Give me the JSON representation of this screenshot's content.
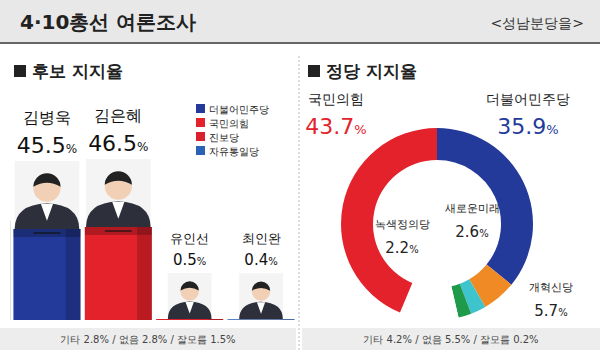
{
  "header": {
    "title": "4·10총선 여론조사",
    "subtitle": "<성남분당을>"
  },
  "chart_data": [
    {
      "type": "bar",
      "title": "후보 지지율",
      "categories": [
        "김병욱",
        "김은혜",
        "유인선",
        "최인완"
      ],
      "values": [
        45.5,
        46.5,
        0.5,
        0.4
      ],
      "value_labels": [
        "45.5%",
        "46.5%",
        "0.5%",
        "0.4%"
      ],
      "colors": [
        "#243a9a",
        "#e3222b",
        "#d9202c",
        "#2a63b6"
      ],
      "parties": [
        "더불어민주당",
        "국민의힘",
        "진보당",
        "자유통일당"
      ],
      "ylim": [
        0,
        50
      ],
      "tick_labels": false,
      "data_labels": true,
      "note": "기타 2.8% / 없음 2.8% / 잘모름 1.5%"
    },
    {
      "type": "donut",
      "title": "정당 지지율",
      "categories": [
        "더불어민주당",
        "개혁신당",
        "새로운미래",
        "녹색정의당",
        "기타",
        "없음",
        "잘모름",
        "국민의힘"
      ],
      "values": [
        35.9,
        5.7,
        2.6,
        2.2,
        4.2,
        5.5,
        0.2,
        43.7
      ],
      "value_labels": [
        "35.9%",
        "5.7%",
        "2.6%",
        "2.2%",
        "4.2%",
        "5.5%",
        "0.2%",
        "43.7%"
      ],
      "colors": [
        "#243a9a",
        "#f08a24",
        "#3ec4cc",
        "#1e9a4a",
        "#ffffff",
        "#ffffff",
        "#ffffff",
        "#e3222b"
      ],
      "data_labels": true
    }
  ]
}
